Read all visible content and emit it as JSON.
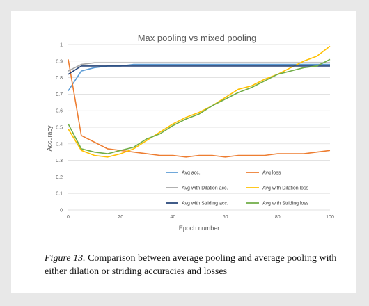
{
  "chart_data": {
    "type": "line",
    "title": "Max pooling vs mixed pooling",
    "xlabel": "Epoch number",
    "ylabel": "Accuracy",
    "xlim": [
      0,
      100
    ],
    "ylim": [
      0,
      1
    ],
    "x_ticks": [
      0,
      20,
      40,
      60,
      80,
      100
    ],
    "y_ticks": [
      0,
      0.1,
      0.2,
      0.3,
      0.4,
      0.5,
      0.6,
      0.7,
      0.8,
      0.9,
      1
    ],
    "grid": "horizontal",
    "legend_position": "bottom-inside",
    "x": [
      0,
      5,
      10,
      15,
      20,
      25,
      30,
      35,
      40,
      45,
      50,
      55,
      60,
      65,
      70,
      75,
      80,
      85,
      90,
      95,
      100
    ],
    "series": [
      {
        "name": "Avg acc.",
        "color": "#5b9bd5",
        "values": [
          0.72,
          0.84,
          0.86,
          0.87,
          0.87,
          0.88,
          0.88,
          0.88,
          0.88,
          0.88,
          0.88,
          0.88,
          0.88,
          0.88,
          0.88,
          0.88,
          0.88,
          0.88,
          0.88,
          0.88,
          0.88
        ]
      },
      {
        "name": "Avg loss",
        "color": "#ed7d31",
        "values": [
          0.91,
          0.45,
          0.41,
          0.37,
          0.36,
          0.35,
          0.34,
          0.33,
          0.33,
          0.32,
          0.33,
          0.33,
          0.32,
          0.33,
          0.33,
          0.33,
          0.34,
          0.34,
          0.34,
          0.35,
          0.36
        ]
      },
      {
        "name": "Avg with Dilation acc.",
        "color": "#a5a5a5",
        "values": [
          0.84,
          0.88,
          0.89,
          0.89,
          0.89,
          0.89,
          0.89,
          0.89,
          0.89,
          0.89,
          0.89,
          0.89,
          0.89,
          0.89,
          0.89,
          0.89,
          0.89,
          0.89,
          0.89,
          0.89,
          0.89
        ]
      },
      {
        "name": "Avg with Dilation loss",
        "color": "#ffc000",
        "values": [
          0.49,
          0.36,
          0.33,
          0.32,
          0.34,
          0.37,
          0.42,
          0.47,
          0.52,
          0.56,
          0.59,
          0.63,
          0.68,
          0.73,
          0.75,
          0.79,
          0.82,
          0.86,
          0.9,
          0.93,
          0.99
        ]
      },
      {
        "name": "Avg with Striding acc.",
        "color": "#264478",
        "values": [
          0.82,
          0.87,
          0.87,
          0.87,
          0.87,
          0.87,
          0.87,
          0.87,
          0.87,
          0.87,
          0.87,
          0.87,
          0.87,
          0.87,
          0.87,
          0.87,
          0.87,
          0.87,
          0.87,
          0.87,
          0.87
        ]
      },
      {
        "name": "Avg with Striding loss",
        "color": "#70ad47",
        "values": [
          0.52,
          0.37,
          0.35,
          0.34,
          0.36,
          0.38,
          0.43,
          0.46,
          0.51,
          0.55,
          0.58,
          0.63,
          0.67,
          0.71,
          0.74,
          0.78,
          0.82,
          0.84,
          0.86,
          0.87,
          0.91
        ]
      }
    ]
  },
  "caption": {
    "label": "Figure 13.",
    "text": " Comparison between average pooling and average pooling with either dilation or striding accuracies and losses"
  }
}
